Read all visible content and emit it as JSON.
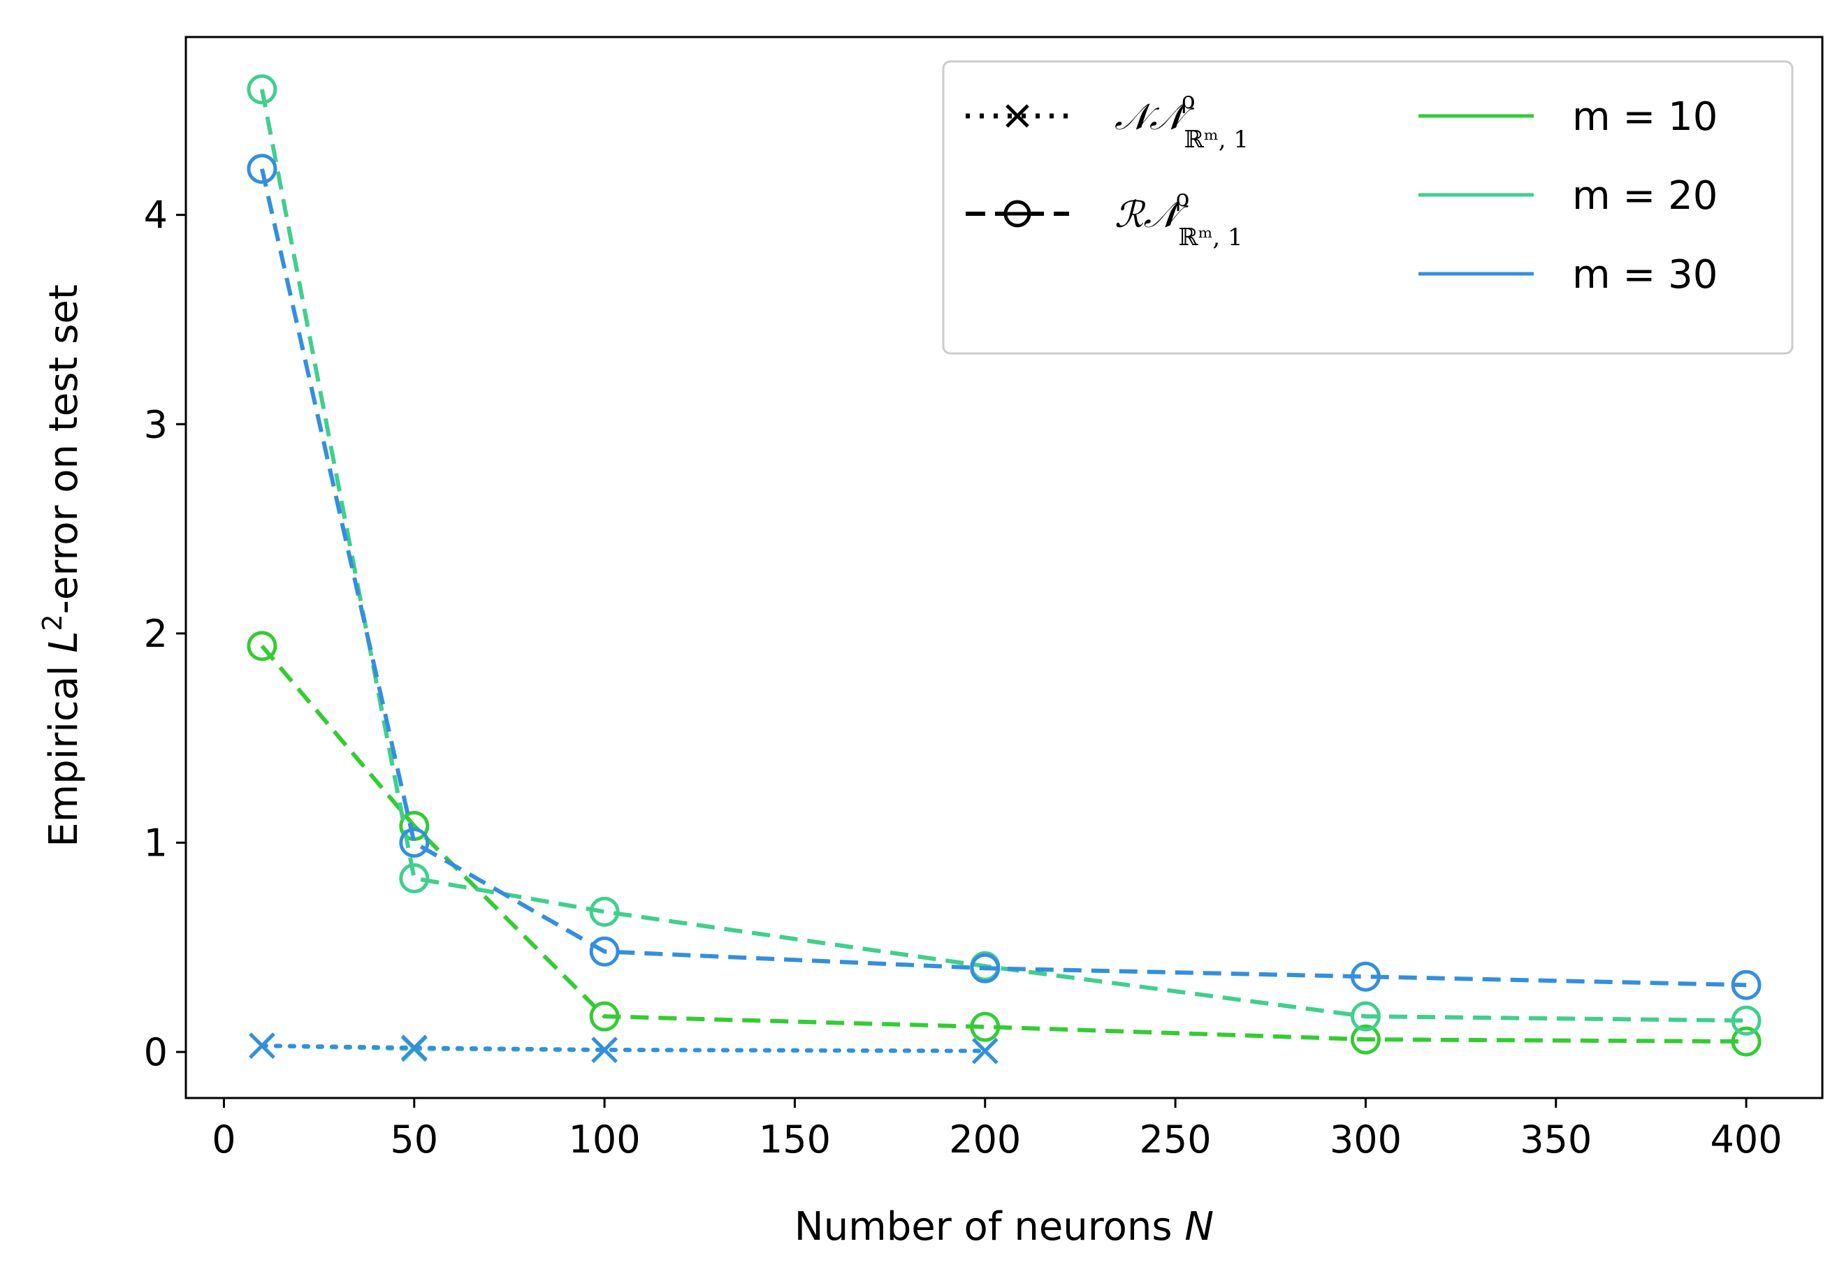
{
  "chart_data": {
    "type": "line",
    "xlabel_text": "Number of neurons ",
    "xlabel_var": "N",
    "ylabel_prefix": "Empirical ",
    "ylabel_var": "L",
    "ylabel_sup": "2",
    "ylabel_suffix": "-error on test set",
    "xlim": [
      -10,
      420
    ],
    "ylim": [
      -0.22,
      4.85
    ],
    "xticks": [
      0,
      50,
      100,
      150,
      200,
      250,
      300,
      350,
      400
    ],
    "yticks": [
      0,
      1,
      2,
      3,
      4
    ],
    "legend_placement": "top-right",
    "legend": {
      "styles": [
        {
          "label_main": "𝒩𝒩",
          "label_sup": "ρ",
          "label_sub": "ℝᵐ, 1",
          "linestyle": "dotted",
          "marker": "x"
        },
        {
          "label_main": "ℛ𝒩",
          "label_sup": "ρ",
          "label_sub": "ℝᵐ, 1",
          "linestyle": "dashed",
          "marker": "o"
        }
      ],
      "colors": [
        {
          "label": "m = 10",
          "color": "#33cc33"
        },
        {
          "label": "m = 20",
          "color": "#3fcf8e"
        },
        {
          "label": "m = 30",
          "color": "#338fdd"
        }
      ]
    },
    "series": [
      {
        "m": 10,
        "kind": "NN",
        "color": "#33cc33",
        "linestyle": "dotted",
        "marker": "x",
        "x": [
          10,
          50,
          100,
          200
        ],
        "y": [
          0.03,
          0.015,
          0.01,
          0.005
        ]
      },
      {
        "m": 20,
        "kind": "NN",
        "color": "#3fcf8e",
        "linestyle": "dotted",
        "marker": "x",
        "x": [
          10,
          50,
          100,
          200
        ],
        "y": [
          0.03,
          0.015,
          0.01,
          0.005
        ]
      },
      {
        "m": 30,
        "kind": "NN",
        "color": "#338fdd",
        "linestyle": "dotted",
        "marker": "x",
        "x": [
          10,
          50,
          100,
          200
        ],
        "y": [
          0.03,
          0.02,
          0.01,
          0.005
        ]
      },
      {
        "m": 10,
        "kind": "RN",
        "color": "#33cc33",
        "linestyle": "dashed",
        "marker": "o",
        "x": [
          10,
          50,
          100,
          200,
          300,
          400
        ],
        "y": [
          1.94,
          1.08,
          0.17,
          0.12,
          0.06,
          0.05
        ]
      },
      {
        "m": 20,
        "kind": "RN",
        "color": "#3fcf8e",
        "linestyle": "dashed",
        "marker": "o",
        "x": [
          10,
          50,
          100,
          200,
          300,
          400
        ],
        "y": [
          4.6,
          0.83,
          0.67,
          0.41,
          0.17,
          0.15
        ]
      },
      {
        "m": 30,
        "kind": "RN",
        "color": "#338fdd",
        "linestyle": "dashed",
        "marker": "o",
        "x": [
          10,
          50,
          100,
          200,
          300,
          400
        ],
        "y": [
          4.22,
          1.0,
          0.48,
          0.4,
          0.36,
          0.32
        ]
      }
    ]
  }
}
